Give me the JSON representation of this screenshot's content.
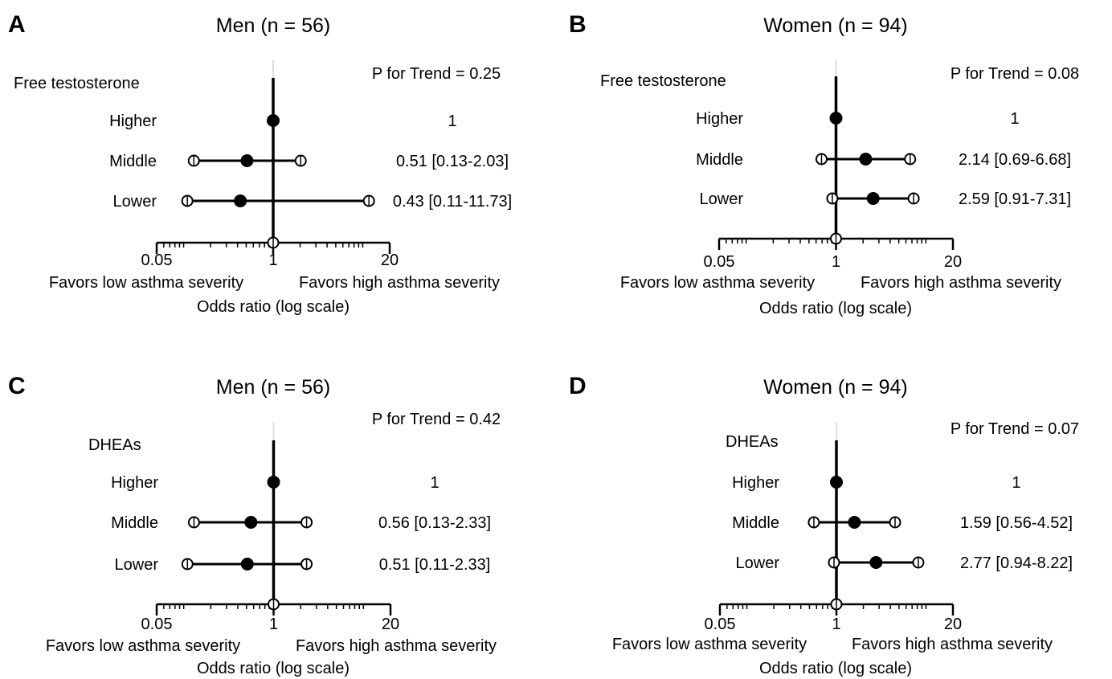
{
  "figure": {
    "panels": [
      {
        "letter": "A",
        "title": "Men (n = 56)",
        "variable": "Free testosterone",
        "p_trend": "P for Trend = 0.25"
      },
      {
        "letter": "B",
        "title": "Women (n = 94)",
        "variable": "Free testosterone",
        "p_trend": "P for Trend = 0.08"
      },
      {
        "letter": "C",
        "title": "Men (n = 56)",
        "variable": "DHEAs",
        "p_trend": "P for Trend = 0.42"
      },
      {
        "letter": "D",
        "title": "Women (n = 94)",
        "variable": "DHEAs",
        "p_trend": "P for Trend = 0.07"
      }
    ]
  },
  "chart_data": [
    {
      "type": "forest",
      "title": "Men (n = 56)",
      "panel": "A",
      "variable": "Free testosterone",
      "p_trend": "P for Trend = 0.25",
      "xscale": "log",
      "xlim": [
        0.05,
        20
      ],
      "xticks": [
        0.05,
        1,
        20
      ],
      "xtick_labels": [
        "0.05",
        "1",
        "20"
      ],
      "reference": 1,
      "xlabel": "Odds ratio (log scale)",
      "left_note": "Favors low asthma severity",
      "right_note": "Favors high asthma severity",
      "rows": [
        {
          "label": "Higher",
          "or": 1,
          "lo": null,
          "hi": null,
          "text": "1"
        },
        {
          "label": "Middle",
          "or": 0.51,
          "lo": 0.13,
          "hi": 2.03,
          "text": "0.51 [0.13-2.03]"
        },
        {
          "label": "Lower",
          "or": 0.43,
          "lo": 0.11,
          "hi": 11.73,
          "text": "0.43 [0.11-11.73]"
        }
      ]
    },
    {
      "type": "forest",
      "title": "Women (n = 94)",
      "panel": "B",
      "variable": "Free testosterone",
      "p_trend": "P for Trend = 0.08",
      "xscale": "log",
      "xlim": [
        0.05,
        20
      ],
      "xticks": [
        0.05,
        1,
        20
      ],
      "xtick_labels": [
        "0.05",
        "1",
        "20"
      ],
      "reference": 1,
      "xlabel": "Odds ratio (log scale)",
      "left_note": "Favors low asthma severity",
      "right_note": "Favors high asthma severity",
      "rows": [
        {
          "label": "Higher",
          "or": 1,
          "lo": null,
          "hi": null,
          "text": "1"
        },
        {
          "label": "Middle",
          "or": 2.14,
          "lo": 0.69,
          "hi": 6.68,
          "text": "2.14 [0.69-6.68]"
        },
        {
          "label": "Lower",
          "or": 2.59,
          "lo": 0.91,
          "hi": 7.31,
          "text": "2.59 [0.91-7.31]"
        }
      ]
    },
    {
      "type": "forest",
      "title": "Men (n = 56)",
      "panel": "C",
      "variable": "DHEAs",
      "p_trend": "P for Trend = 0.42",
      "xscale": "log",
      "xlim": [
        0.05,
        20
      ],
      "xticks": [
        0.05,
        1,
        20
      ],
      "xtick_labels": [
        "0.05",
        "1",
        "20"
      ],
      "reference": 1,
      "xlabel": "Odds ratio (log scale)",
      "left_note": "Favors low asthma severity",
      "right_note": "Favors high asthma severity",
      "rows": [
        {
          "label": "Higher",
          "or": 1,
          "lo": null,
          "hi": null,
          "text": "1"
        },
        {
          "label": "Middle",
          "or": 0.56,
          "lo": 0.13,
          "hi": 2.33,
          "text": "0.56 [0.13-2.33]"
        },
        {
          "label": "Lower",
          "or": 0.51,
          "lo": 0.11,
          "hi": 2.33,
          "text": "0.51 [0.11-2.33]"
        }
      ]
    },
    {
      "type": "forest",
      "title": "Women (n = 94)",
      "panel": "D",
      "variable": "DHEAs",
      "p_trend": "P for Trend = 0.07",
      "xscale": "log",
      "xlim": [
        0.05,
        20
      ],
      "xticks": [
        0.05,
        1,
        20
      ],
      "xtick_labels": [
        "0.05",
        "1",
        "20"
      ],
      "reference": 1,
      "xlabel": "Odds ratio (log scale)",
      "left_note": "Favors low asthma severity",
      "right_note": "Favors high asthma severity",
      "rows": [
        {
          "label": "Higher",
          "or": 1,
          "lo": null,
          "hi": null,
          "text": "1"
        },
        {
          "label": "Middle",
          "or": 1.59,
          "lo": 0.56,
          "hi": 4.52,
          "text": "1.59 [0.56-4.52]"
        },
        {
          "label": "Lower",
          "or": 2.77,
          "lo": 0.94,
          "hi": 8.22,
          "text": "2.77 [0.94-8.22]"
        }
      ]
    }
  ]
}
